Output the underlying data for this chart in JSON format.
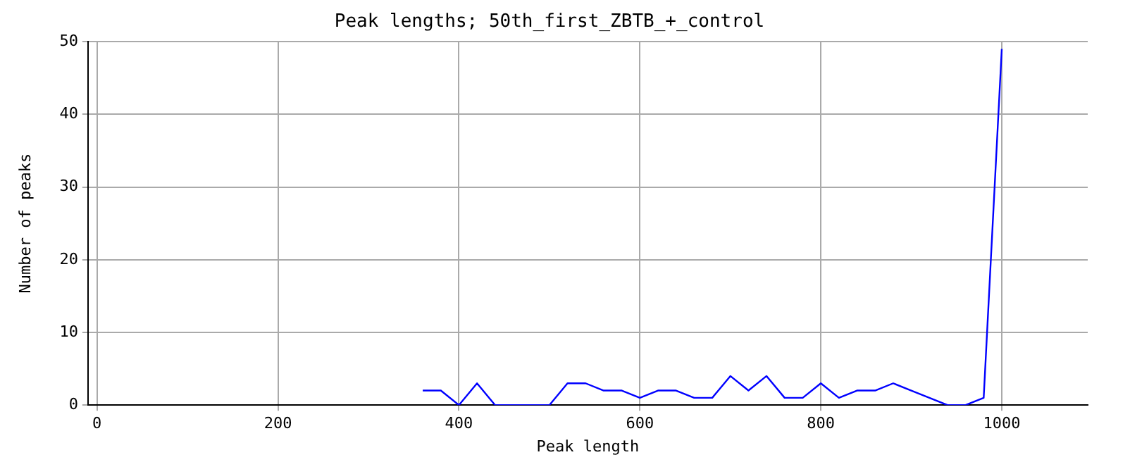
{
  "chart_data": {
    "type": "line",
    "title": "Peak lengths; 50th_first_ZBTB_+_control",
    "xlabel": "Peak length",
    "ylabel": "Number of peaks",
    "x": [
      360,
      380,
      400,
      420,
      440,
      460,
      480,
      500,
      520,
      540,
      560,
      580,
      600,
      620,
      640,
      660,
      680,
      700,
      720,
      740,
      760,
      780,
      800,
      820,
      840,
      860,
      880,
      900,
      920,
      940,
      960,
      980,
      1000
    ],
    "series": [
      {
        "color": "#0000ff",
        "values": [
          2,
          2,
          0,
          3,
          0,
          0,
          0,
          0,
          3,
          3,
          2,
          2,
          1,
          2,
          2,
          1,
          1,
          4,
          2,
          4,
          1,
          1,
          3,
          1,
          2,
          2,
          3,
          2,
          1,
          0,
          0,
          1,
          49
        ]
      }
    ],
    "xlim": [
      -10,
      1095
    ],
    "xticks": [
      0,
      200,
      400,
      600,
      800,
      1000
    ],
    "ylim": [
      0,
      50
    ],
    "yticks": [
      0,
      10,
      20,
      30,
      40,
      50
    ],
    "grid": true,
    "legend": false,
    "marker": "none",
    "line_style": "solid"
  }
}
